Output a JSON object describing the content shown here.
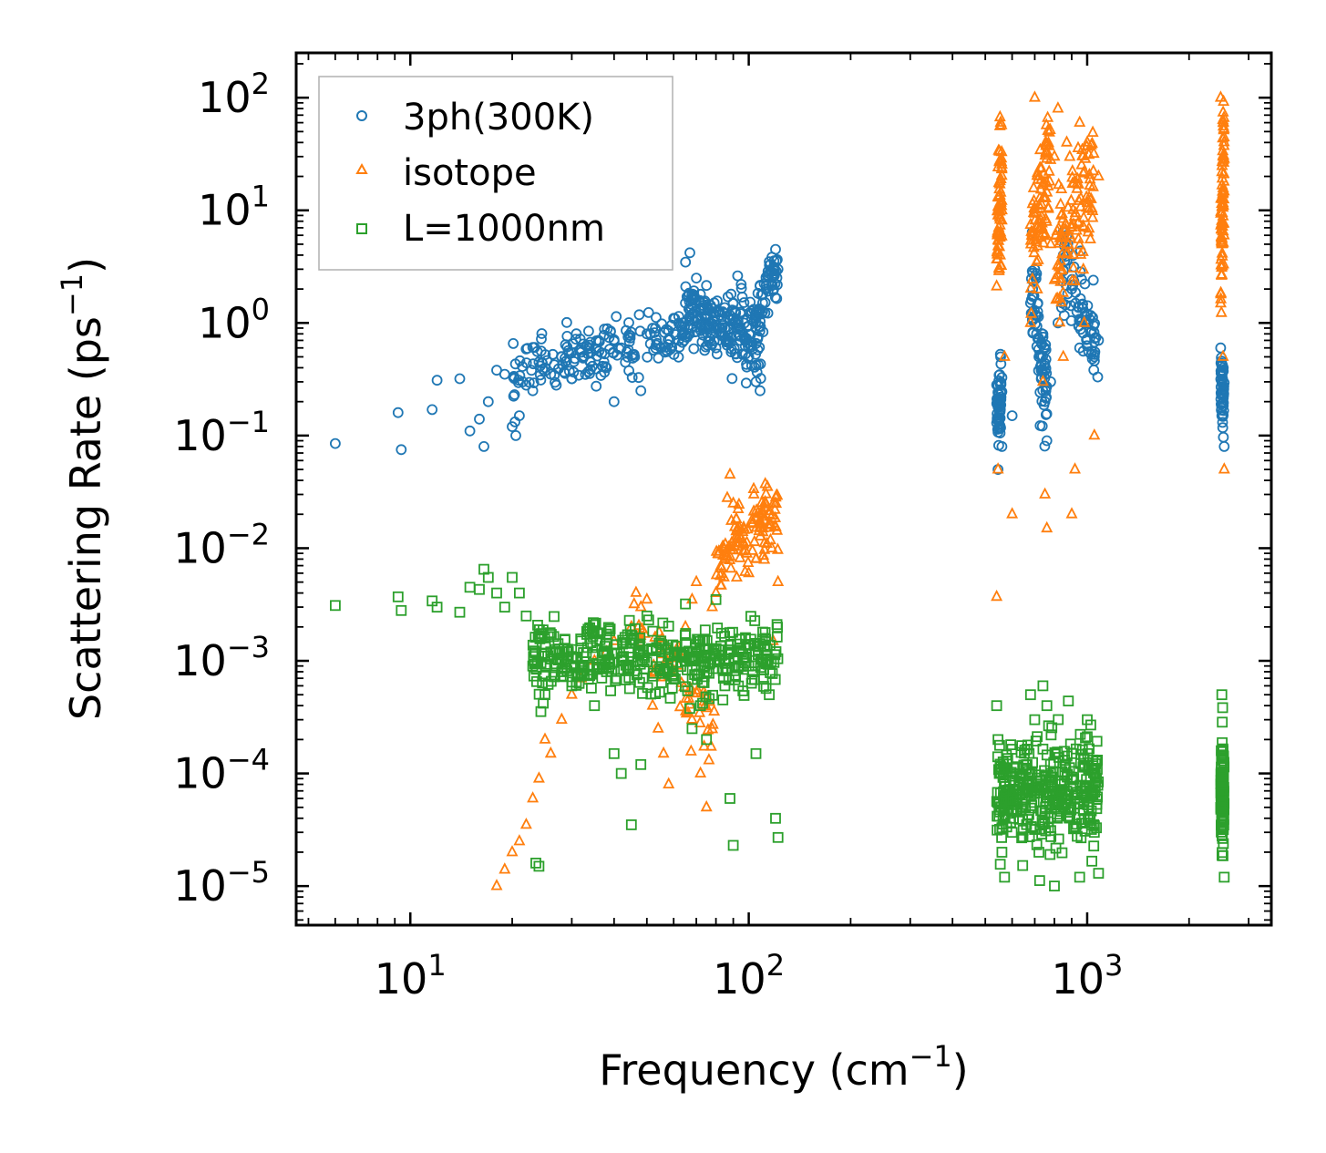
{
  "chart_data": {
    "type": "scatter",
    "title": "",
    "xlabel": "Frequency (cm",
    "xlabel_exp": "−1",
    "xlabel_suffix": ")",
    "ylabel": "Scattering Rate (ps",
    "ylabel_exp": "−1",
    "ylabel_suffix": ")",
    "xscale": "log",
    "yscale": "log",
    "xlim": [
      4.6,
      3500
    ],
    "ylim": [
      4.5e-06,
      250
    ],
    "x_ticks": [
      {
        "value": 10,
        "base": "10",
        "exp": "1"
      },
      {
        "value": 100,
        "base": "10",
        "exp": "2"
      },
      {
        "value": 1000,
        "base": "10",
        "exp": "3"
      }
    ],
    "y_ticks": [
      {
        "value": 1e-05,
        "base": "10",
        "exp": "−5"
      },
      {
        "value": 0.0001,
        "base": "10",
        "exp": "−4"
      },
      {
        "value": 0.001,
        "base": "10",
        "exp": "−3"
      },
      {
        "value": 0.01,
        "base": "10",
        "exp": "−2"
      },
      {
        "value": 0.1,
        "base": "10",
        "exp": "−1"
      },
      {
        "value": 1,
        "base": "10",
        "exp": "0"
      },
      {
        "value": 10,
        "base": "10",
        "exp": "1"
      },
      {
        "value": 100,
        "base": "10",
        "exp": "2"
      }
    ],
    "legend_position": "top-left",
    "series": [
      {
        "name": "3ph(300K)",
        "color": "#1f77b4",
        "marker": "circle",
        "points": [
          [
            6,
            0.085
          ],
          [
            9.2,
            0.16
          ],
          [
            9.4,
            0.075
          ],
          [
            11.6,
            0.17
          ],
          [
            12,
            0.31
          ],
          [
            14,
            0.32
          ],
          [
            15,
            0.11
          ],
          [
            16,
            0.14
          ],
          [
            16.5,
            0.08
          ],
          [
            17,
            0.2
          ],
          [
            18,
            0.38
          ],
          [
            19,
            0.35
          ],
          [
            20,
            0.12
          ],
          [
            20.5,
            0.1
          ],
          [
            21,
            0.15
          ],
          [
            21.5,
            0.3
          ],
          [
            22,
            0.28
          ],
          [
            23,
            0.25
          ],
          [
            24,
            0.45
          ],
          [
            25,
            0.4
          ],
          [
            26,
            0.35
          ],
          [
            27,
            0.28
          ],
          [
            28,
            0.5
          ],
          [
            30,
            0.32
          ],
          [
            32,
            0.55
          ],
          [
            34,
            0.45
          ],
          [
            36,
            0.7
          ],
          [
            38,
            0.4
          ],
          [
            40,
            0.2
          ],
          [
            42,
            0.6
          ],
          [
            44,
            0.75
          ],
          [
            46,
            0.5
          ],
          [
            48,
            0.25
          ],
          [
            50,
            0.8
          ],
          [
            52,
            0.9
          ],
          [
            55,
            0.6
          ],
          [
            58,
            0.85
          ],
          [
            60,
            1.1
          ],
          [
            62,
            0.7
          ],
          [
            65,
            1.5
          ],
          [
            67,
            4.2
          ],
          [
            70,
            2.5
          ],
          [
            72,
            1.8
          ],
          [
            75,
            1.2
          ],
          [
            78,
            0.8
          ],
          [
            80,
            0.6
          ],
          [
            85,
            0.9
          ],
          [
            90,
            1.5
          ],
          [
            95,
            2.2
          ],
          [
            100,
            0.5
          ],
          [
            105,
            0.3
          ],
          [
            108,
            0.25
          ],
          [
            110,
            1.8
          ],
          [
            115,
            3.5
          ],
          [
            120,
            4.5
          ],
          [
            122,
            3.0
          ],
          [
            545,
            0.05
          ],
          [
            550,
            0.2
          ],
          [
            555,
            0.5
          ],
          [
            560,
            0.08
          ],
          [
            600,
            0.15
          ],
          [
            680,
            1.5
          ],
          [
            700,
            3.0
          ],
          [
            720,
            0.5
          ],
          [
            750,
            0.2
          ],
          [
            760,
            0.09
          ],
          [
            780,
            0.3
          ],
          [
            820,
            1.0
          ],
          [
            850,
            4.0
          ],
          [
            870,
            6.0
          ],
          [
            900,
            2.0
          ],
          [
            950,
            0.6
          ],
          [
            1000,
            1.2
          ],
          [
            1050,
            0.5
          ],
          [
            1080,
            0.7
          ],
          [
            2480,
            0.6
          ],
          [
            2500,
            0.15
          ],
          [
            2520,
            0.25
          ],
          [
            2540,
            0.08
          ]
        ]
      },
      {
        "name": "isotope",
        "color": "#ff7f0e",
        "marker": "triangle",
        "points": [
          [
            18,
            1e-05
          ],
          [
            19,
            1.4e-05
          ],
          [
            20,
            2e-05
          ],
          [
            21,
            2.5e-05
          ],
          [
            22,
            3.5e-05
          ],
          [
            23,
            6e-05
          ],
          [
            24,
            9e-05
          ],
          [
            25,
            0.0002
          ],
          [
            26,
            0.00015
          ],
          [
            28,
            0.0003
          ],
          [
            30,
            0.0005
          ],
          [
            32,
            0.0007
          ],
          [
            35,
            0.001
          ],
          [
            38,
            0.0012
          ],
          [
            40,
            0.0015
          ],
          [
            45,
            0.002
          ],
          [
            48,
            0.003
          ],
          [
            50,
            0.0035
          ],
          [
            52,
            0.0004
          ],
          [
            54,
            0.00025
          ],
          [
            56,
            0.00015
          ],
          [
            58,
            8e-05
          ],
          [
            60,
            0.0008
          ],
          [
            62,
            0.0012
          ],
          [
            65,
            0.002
          ],
          [
            68,
            0.0035
          ],
          [
            70,
            0.005
          ],
          [
            72,
            0.0001
          ],
          [
            75,
            5e-05
          ],
          [
            78,
            0.003
          ],
          [
            80,
            0.004
          ],
          [
            85,
            0.008
          ],
          [
            88,
            0.045
          ],
          [
            90,
            0.025
          ],
          [
            95,
            0.012
          ],
          [
            100,
            0.006
          ],
          [
            105,
            0.008
          ],
          [
            110,
            0.015
          ],
          [
            115,
            0.02
          ],
          [
            120,
            0.025
          ],
          [
            122,
            0.005
          ],
          [
            118,
            0.0015
          ],
          [
            540,
            0.0037
          ],
          [
            545,
            0.05
          ],
          [
            550,
            3.0
          ],
          [
            555,
            60
          ],
          [
            560,
            10
          ],
          [
            570,
            0.5
          ],
          [
            600,
            0.02
          ],
          [
            680,
            1.0
          ],
          [
            700,
            100
          ],
          [
            720,
            20
          ],
          [
            740,
            0.3
          ],
          [
            750,
            0.03
          ],
          [
            760,
            0.015
          ],
          [
            780,
            5.0
          ],
          [
            800,
            30
          ],
          [
            820,
            80
          ],
          [
            850,
            0.5
          ],
          [
            870,
            40
          ],
          [
            900,
            0.02
          ],
          [
            920,
            0.05
          ],
          [
            950,
            60
          ],
          [
            980,
            1.0
          ],
          [
            1000,
            40
          ],
          [
            1050,
            0.1
          ],
          [
            1080,
            20
          ],
          [
            2480,
            100
          ],
          [
            2500,
            5.0
          ],
          [
            2520,
            0.5
          ],
          [
            2540,
            0.05
          ]
        ]
      },
      {
        "name": "L=1000nm",
        "color": "#2ca02c",
        "marker": "square",
        "points": [
          [
            6,
            0.0031
          ],
          [
            9.2,
            0.0037
          ],
          [
            9.4,
            0.0028
          ],
          [
            11.6,
            0.0034
          ],
          [
            12,
            0.003
          ],
          [
            14,
            0.0027
          ],
          [
            15,
            0.0045
          ],
          [
            16,
            0.0043
          ],
          [
            16.5,
            0.0065
          ],
          [
            17,
            0.0055
          ],
          [
            18,
            0.004
          ],
          [
            19,
            0.003
          ],
          [
            20,
            0.0055
          ],
          [
            21,
            0.004
          ],
          [
            22,
            0.0025
          ],
          [
            23,
            0.0009
          ],
          [
            23.5,
            1.6e-05
          ],
          [
            24,
            1.5e-05
          ],
          [
            25,
            0.0005
          ],
          [
            26,
            0.0012
          ],
          [
            28,
            0.0008
          ],
          [
            30,
            0.0006
          ],
          [
            32,
            0.0015
          ],
          [
            35,
            0.0004
          ],
          [
            38,
            0.0008
          ],
          [
            40,
            0.00015
          ],
          [
            42,
            0.0001
          ],
          [
            45,
            3.5e-05
          ],
          [
            48,
            0.00012
          ],
          [
            50,
            0.0025
          ],
          [
            55,
            0.0015
          ],
          [
            60,
            0.0007
          ],
          [
            65,
            0.0032
          ],
          [
            68,
            0.00025
          ],
          [
            70,
            0.0012
          ],
          [
            72,
            0.0004
          ],
          [
            75,
            0.0002
          ],
          [
            80,
            0.0035
          ],
          [
            85,
            0.0006
          ],
          [
            88,
            6e-05
          ],
          [
            90,
            2.3e-05
          ],
          [
            95,
            0.0012
          ],
          [
            100,
            0.0009
          ],
          [
            105,
            0.00015
          ],
          [
            110,
            0.0018
          ],
          [
            115,
            0.0005
          ],
          [
            120,
            4e-05
          ],
          [
            122,
            2.7e-05
          ],
          [
            540,
            0.0004
          ],
          [
            545,
            0.0002
          ],
          [
            550,
            0.0001
          ],
          [
            555,
            5e-05
          ],
          [
            560,
            2e-05
          ],
          [
            570,
            1.2e-05
          ],
          [
            600,
            3e-05
          ],
          [
            680,
            0.0005
          ],
          [
            700,
            0.0003
          ],
          [
            720,
            2e-05
          ],
          [
            740,
            0.0006
          ],
          [
            760,
            0.0004
          ],
          [
            780,
            0.0001
          ],
          [
            800,
            1e-05
          ],
          [
            850,
            5e-05
          ],
          [
            880,
            0.00044
          ],
          [
            900,
            0.00015
          ],
          [
            950,
            1.2e-05
          ],
          [
            1000,
            0.0003
          ],
          [
            1050,
            3e-05
          ],
          [
            1080,
            1.3e-05
          ],
          [
            2480,
            5e-05
          ],
          [
            2500,
            0.0005
          ],
          [
            2520,
            0.00013
          ],
          [
            2540,
            1.2e-05
          ]
        ]
      }
    ],
    "clusters": [
      {
        "series": 0,
        "x_range": [
          20,
          105
        ],
        "y_log_center_start": -0.45,
        "y_log_center_end": 0.1,
        "y_log_spread": 0.25,
        "count": 260
      },
      {
        "series": 0,
        "x_range": [
          65,
          110
        ],
        "y_log_center_start": 0.2,
        "y_log_center_end": -0.35,
        "y_log_spread": 0.25,
        "count": 120
      },
      {
        "series": 0,
        "x_range": [
          105,
          122
        ],
        "y_log_center_start": 0.0,
        "y_log_center_end": 0.5,
        "y_log_spread": 0.2,
        "count": 60
      },
      {
        "series": 0,
        "x_range": [
          540,
          560
        ],
        "y_log_center_start": -0.8,
        "y_log_center_end": -0.6,
        "y_log_spread": 0.4,
        "count": 60
      },
      {
        "series": 0,
        "x_range": [
          680,
          760
        ],
        "y_log_center_start": 0.2,
        "y_log_center_end": -0.6,
        "y_log_spread": 0.45,
        "count": 80
      },
      {
        "series": 0,
        "x_range": [
          840,
          1080
        ],
        "y_log_center_start": 0.5,
        "y_log_center_end": -0.2,
        "y_log_spread": 0.4,
        "count": 80
      },
      {
        "series": 0,
        "x_range": [
          2480,
          2540
        ],
        "y_log_center_start": -0.5,
        "y_log_center_end": -0.7,
        "y_log_spread": 0.3,
        "count": 50
      },
      {
        "series": 1,
        "x_range": [
          80,
          122
        ],
        "y_log_center_start": -2.1,
        "y_log_center_end": -1.7,
        "y_log_spread": 0.3,
        "count": 120
      },
      {
        "series": 1,
        "x_range": [
          45,
          80
        ],
        "y_log_center_start": -2.6,
        "y_log_center_end": -3.6,
        "y_log_spread": 0.35,
        "count": 60
      },
      {
        "series": 1,
        "x_range": [
          540,
          560
        ],
        "y_log_center_start": 0.6,
        "y_log_center_end": 1.4,
        "y_log_spread": 0.6,
        "count": 70
      },
      {
        "series": 1,
        "x_range": [
          680,
          780
        ],
        "y_log_center_start": 0.6,
        "y_log_center_end": 1.4,
        "y_log_spread": 0.6,
        "count": 90
      },
      {
        "series": 1,
        "x_range": [
          800,
          1050
        ],
        "y_log_center_start": 0.5,
        "y_log_center_end": 1.3,
        "y_log_spread": 0.6,
        "count": 110
      },
      {
        "series": 1,
        "x_range": [
          2480,
          2540
        ],
        "y_log_center_start": 0.5,
        "y_log_center_end": 1.5,
        "y_log_spread": 0.6,
        "count": 90
      },
      {
        "series": 2,
        "x_range": [
          23,
          122
        ],
        "y_log_center_start": -2.95,
        "y_log_center_end": -3.0,
        "y_log_spread": 0.3,
        "count": 420
      },
      {
        "series": 2,
        "x_range": [
          540,
          1080
        ],
        "y_log_center_start": -4.2,
        "y_log_center_end": -4.2,
        "y_log_spread": 0.5,
        "count": 380
      },
      {
        "series": 2,
        "x_range": [
          2480,
          2540
        ],
        "y_log_center_start": -4.2,
        "y_log_center_end": -4.2,
        "y_log_spread": 0.5,
        "count": 90
      }
    ]
  }
}
